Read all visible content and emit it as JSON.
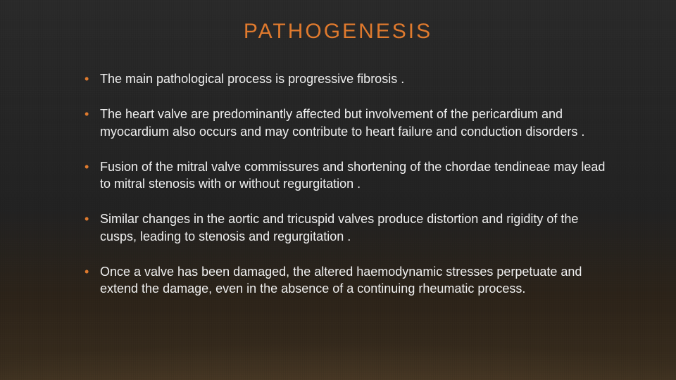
{
  "title": "PATHOGENESIS",
  "title_color": "#e07b2e",
  "title_fontsize": 30,
  "title_letter_spacing": 3,
  "body_color": "#f0f0f0",
  "body_fontsize": 18,
  "bullet_color": "#e07b2e",
  "background": {
    "top_color": "#2a2a2a",
    "bottom_color": "#3a2e1e",
    "floor_glow": "rgba(210,175,130,0.55)"
  },
  "bullets": [
    "The main pathological process is progressive fibrosis .",
    "The heart valve are predominantly affected but involvement of the pericardium and myocardium also occurs and may contribute to heart failure and conduction disorders .",
    "Fusion of the mitral valve commissures and shortening of the chordae tendineae may lead to mitral stenosis with or without regurgitation .",
    "Similar changes in the aortic and tricuspid valves produce distortion and rigidity of the cusps, leading to stenosis and regurgitation .",
    "Once a valve has been damaged, the altered haemodynamic stresses perpetuate and extend the damage, even in the absence of a continuing rheumatic process."
  ]
}
